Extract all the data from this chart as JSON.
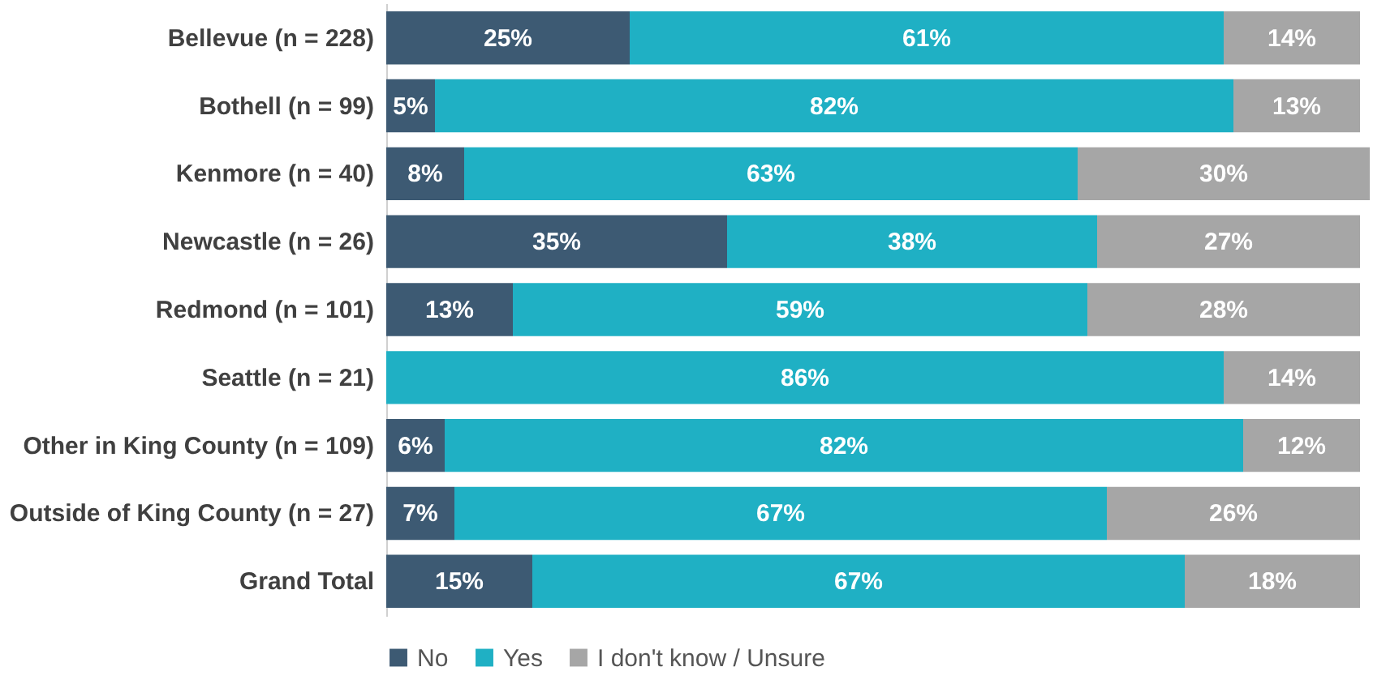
{
  "chart_data": {
    "type": "bar",
    "orientation": "horizontal",
    "stacked": true,
    "legend": "bottom",
    "grid": false,
    "tick_labels": "y",
    "categories": [
      "Bellevue (n = 228)",
      "Bothell (n = 99)",
      "Kenmore (n = 40)",
      "Newcastle (n = 26)",
      "Redmond (n = 101)",
      "Seattle (n = 21)",
      "Other in King County (n = 109)",
      "Outside of King County (n = 27)",
      "Grand Total"
    ],
    "series": [
      {
        "name": "No",
        "color": "#3d5a73",
        "values": [
          25,
          5,
          8,
          35,
          13,
          0,
          6,
          7,
          15
        ],
        "value_labels": [
          "25%",
          "5%",
          "8%",
          "35%",
          "13%",
          null,
          "6%",
          "7%",
          "15%"
        ]
      },
      {
        "name": "Yes",
        "color": "#1fb0c4",
        "values": [
          61,
          82,
          63,
          38,
          59,
          86,
          82,
          67,
          67
        ],
        "value_labels": [
          "61%",
          "82%",
          "63%",
          "38%",
          "59%",
          "86%",
          "82%",
          "67%",
          "67%"
        ]
      },
      {
        "name": "I don't know / Unsure",
        "color": "#a6a6a6",
        "values": [
          14,
          13,
          30,
          27,
          28,
          14,
          12,
          26,
          18
        ],
        "value_labels": [
          "14%",
          "13%",
          "30%",
          "27%",
          "28%",
          "14%",
          "12%",
          "26%",
          "18%"
        ]
      }
    ]
  }
}
